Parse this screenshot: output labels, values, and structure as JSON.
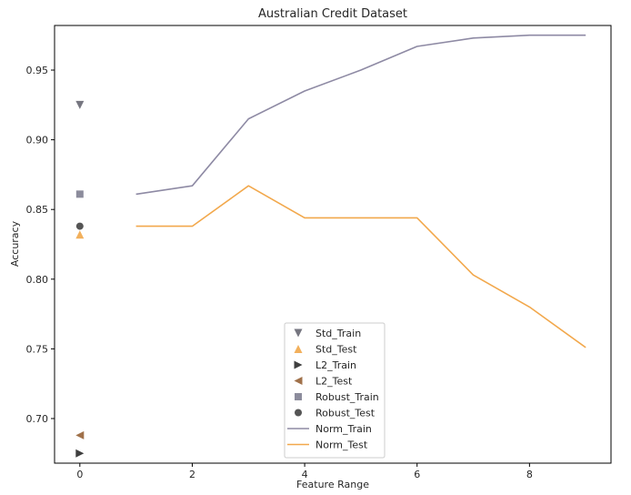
{
  "chart_data": {
    "type": "line",
    "title": "Australian Credit Dataset",
    "xlabel": "Feature Range",
    "ylabel": "Accuracy",
    "xlim": [
      -0.45,
      9.45
    ],
    "ylim": [
      0.668,
      0.982
    ],
    "xticks": [
      0,
      2,
      4,
      6,
      8
    ],
    "yticks": [
      0.7,
      0.75,
      0.8,
      0.85,
      0.9,
      0.95
    ],
    "ytick_labels": [
      "0.70",
      "0.75",
      "0.80",
      "0.85",
      "0.90",
      "0.95"
    ],
    "grid": false,
    "legend_position": "bottom-center",
    "series": [
      {
        "name": "Std_Train",
        "kind": "marker",
        "marker": "triangle-down",
        "color": "#767680",
        "x": [
          0
        ],
        "y": [
          0.925
        ]
      },
      {
        "name": "Std_Test",
        "kind": "marker",
        "marker": "triangle-up",
        "color": "#f2b05c",
        "x": [
          0
        ],
        "y": [
          0.832
        ]
      },
      {
        "name": "L2_Train",
        "kind": "marker",
        "marker": "triangle-right",
        "color": "#3f3f3f",
        "x": [
          0
        ],
        "y": [
          0.675
        ]
      },
      {
        "name": "L2_Test",
        "kind": "marker",
        "marker": "triangle-left",
        "color": "#a0714a",
        "x": [
          0
        ],
        "y": [
          0.688
        ]
      },
      {
        "name": "Robust_Train",
        "kind": "marker",
        "marker": "square",
        "color": "#8c8c9c",
        "x": [
          0
        ],
        "y": [
          0.861
        ]
      },
      {
        "name": "Robust_Test",
        "kind": "marker",
        "marker": "circle",
        "color": "#555555",
        "x": [
          0
        ],
        "y": [
          0.838
        ]
      },
      {
        "name": "Norm_Train",
        "kind": "line",
        "color": "#8e8aa4",
        "x": [
          1,
          2,
          3,
          4,
          5,
          6,
          7,
          8,
          9
        ],
        "y": [
          0.861,
          0.867,
          0.915,
          0.935,
          0.95,
          0.967,
          0.973,
          0.975,
          0.975
        ]
      },
      {
        "name": "Norm_Test",
        "kind": "line",
        "color": "#f2a84c",
        "x": [
          1,
          2,
          3,
          4,
          5,
          6,
          7,
          8,
          9
        ],
        "y": [
          0.838,
          0.838,
          0.867,
          0.844,
          0.844,
          0.844,
          0.803,
          0.78,
          0.751
        ]
      }
    ]
  }
}
